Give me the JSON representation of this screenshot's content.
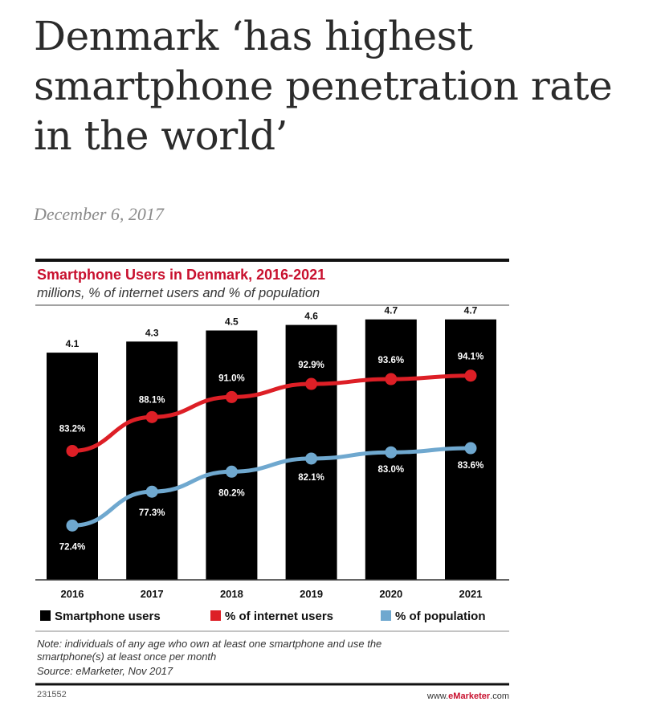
{
  "article": {
    "headline": "Denmark ‘has highest smartphone penetration rate in the world’",
    "date": "December 6, 2017"
  },
  "chart_data": {
    "type": "bar",
    "title": "Smartphone Users in Denmark, 2016-2021",
    "subtitle": "millions, % of internet users and % of population",
    "categories": [
      "2016",
      "2017",
      "2018",
      "2019",
      "2020",
      "2021"
    ],
    "series": [
      {
        "name": "Smartphone users",
        "type": "bar",
        "color": "#000000",
        "values": [
          4.1,
          4.3,
          4.5,
          4.6,
          4.7,
          4.7
        ],
        "labels": [
          "4.1",
          "4.3",
          "4.5",
          "4.6",
          "4.7",
          "4.7"
        ]
      },
      {
        "name": "% of internet users",
        "type": "line",
        "color": "#dd1f26",
        "values": [
          83.2,
          88.1,
          91.0,
          92.9,
          93.6,
          94.1
        ],
        "labels": [
          "83.2%",
          "88.1%",
          "91.0%",
          "92.9%",
          "93.6%",
          "94.1%"
        ]
      },
      {
        "name": "% of population",
        "type": "line",
        "color": "#6fa8cf",
        "values": [
          72.4,
          77.3,
          80.2,
          82.1,
          83.0,
          83.6
        ],
        "labels": [
          "72.4%",
          "77.3%",
          "80.2%",
          "82.1%",
          "83.0%",
          "83.6%"
        ]
      }
    ],
    "legend_position": "bottom",
    "grid": false,
    "note": [
      "Note: individuals of any age who own at least one smartphone and use the",
      "smartphone(s) at least once per month",
      "Source: eMarketer, Nov 2017"
    ],
    "chart_id": "231552",
    "brand": {
      "prefix": "www.",
      "name": "eMarketer",
      "suffix": ".com"
    }
  }
}
